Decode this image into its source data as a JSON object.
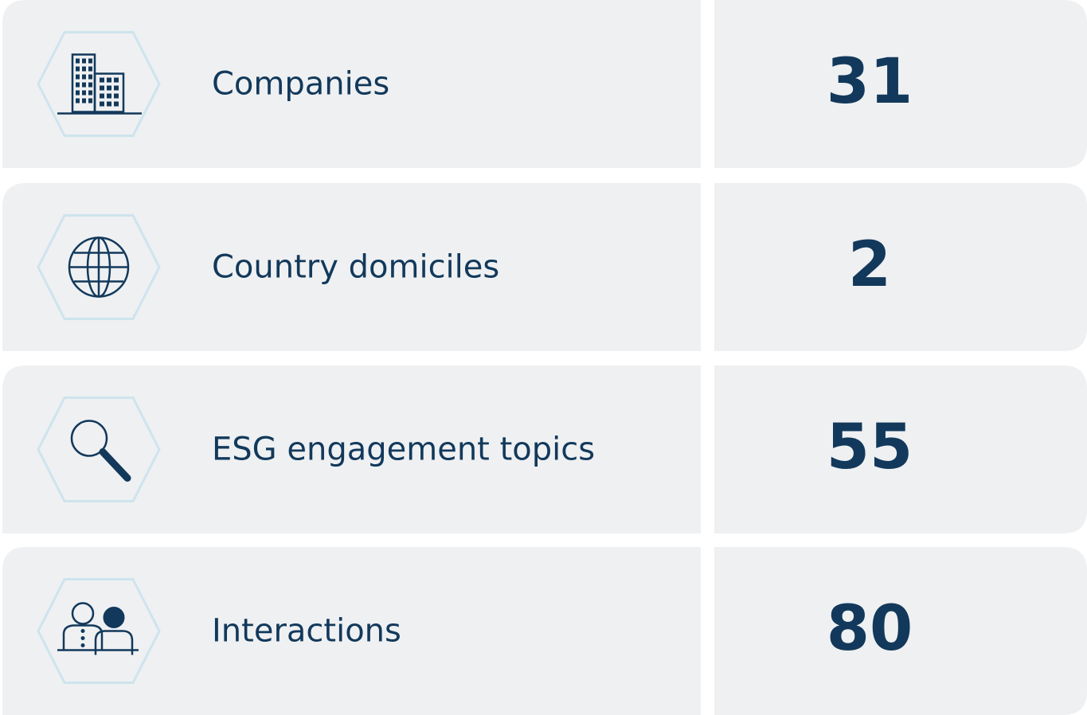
{
  "rows": [
    {
      "label": "Companies",
      "value": 31
    },
    {
      "label": "Country domiciles",
      "value": 2
    },
    {
      "label": "ESG engagement topics",
      "value": 55
    },
    {
      "label": "Interactions",
      "value": 80
    }
  ]
}
